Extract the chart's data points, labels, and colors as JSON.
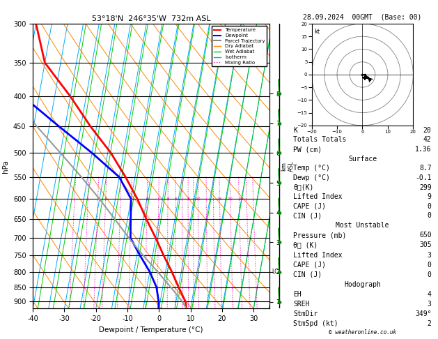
{
  "title": "53°18'N  246°35'W  732m ASL",
  "date_str": "28.09.2024  00GMT  (Base: 00)",
  "xlabel": "Dewpoint / Temperature (°C)",
  "ylabel_left": "hPa",
  "ylabel_right_top": "km",
  "ylabel_right_bottom": "ASL",
  "pressure_levels": [
    300,
    350,
    400,
    450,
    500,
    550,
    600,
    650,
    700,
    750,
    800,
    850,
    900
  ],
  "p_min": 300,
  "p_max": 925,
  "temp_xlim": [
    -40,
    35
  ],
  "temp_xticks": [
    -40,
    -30,
    -20,
    -10,
    0,
    10,
    20,
    30
  ],
  "skew_factor": 16.0,
  "mixing_ratio_labels": [
    1,
    2,
    3,
    4,
    5,
    6,
    8,
    10,
    16,
    20,
    25
  ],
  "km_ticks": [
    1,
    2,
    3,
    4,
    5,
    6,
    7,
    8
  ],
  "lcl_km": 2,
  "bg_color": "#ffffff",
  "isotherm_color": "#00aaff",
  "isotherm_lw": 0.7,
  "dry_adiabat_color": "#ff8800",
  "dry_adiabat_lw": 0.7,
  "wet_adiabat_color": "#00cc00",
  "wet_adiabat_lw": 0.7,
  "mixing_ratio_color": "#ff00bb",
  "mixing_ratio_lw": 0.7,
  "temp_profile": {
    "pressures": [
      925,
      900,
      850,
      800,
      750,
      700,
      650,
      600,
      550,
      500,
      450,
      400,
      350,
      300
    ],
    "temps": [
      8.7,
      8.0,
      5.0,
      2.0,
      -1.5,
      -5.0,
      -9.0,
      -13.0,
      -18.0,
      -24.0,
      -32.0,
      -40.0,
      -50.0,
      -55.0
    ],
    "color": "#ff0000",
    "linewidth": 2.0,
    "label": "Temperature"
  },
  "dewpoint_profile": {
    "pressures": [
      925,
      900,
      850,
      800,
      750,
      700,
      650,
      600,
      550,
      500,
      450,
      400,
      350,
      300
    ],
    "temps": [
      -0.1,
      -0.5,
      -2.0,
      -5.0,
      -9.0,
      -13.0,
      -14.0,
      -15.0,
      -20.0,
      -30.0,
      -42.0,
      -55.0,
      -65.0,
      -70.0
    ],
    "color": "#0000ff",
    "linewidth": 2.0,
    "label": "Dewpoint"
  },
  "parcel_profile": {
    "pressures": [
      925,
      900,
      850,
      800,
      750,
      700,
      650,
      600,
      550,
      500,
      450,
      400,
      350,
      300
    ],
    "temps": [
      8.7,
      7.0,
      2.5,
      -2.5,
      -8.0,
      -13.5,
      -19.0,
      -25.0,
      -32.0,
      -40.0,
      -49.0,
      -58.0,
      -65.0,
      -70.0
    ],
    "color": "#999999",
    "linewidth": 1.5,
    "label": "Parcel Trajectory"
  },
  "stats": {
    "K": 20,
    "TotTot": 42,
    "PW_cm": 1.36,
    "surf_temp": 8.7,
    "surf_dewp": -0.1,
    "surf_thetae": 299,
    "surf_LI": 9,
    "surf_CAPE": 0,
    "surf_CIN": 0,
    "mu_pressure": 650,
    "mu_thetae": 305,
    "mu_LI": 3,
    "mu_CAPE": 0,
    "mu_CIN": 0,
    "EH": 4,
    "SREH": 3,
    "StmDir": "349°",
    "StmSpd_kt": 2
  }
}
